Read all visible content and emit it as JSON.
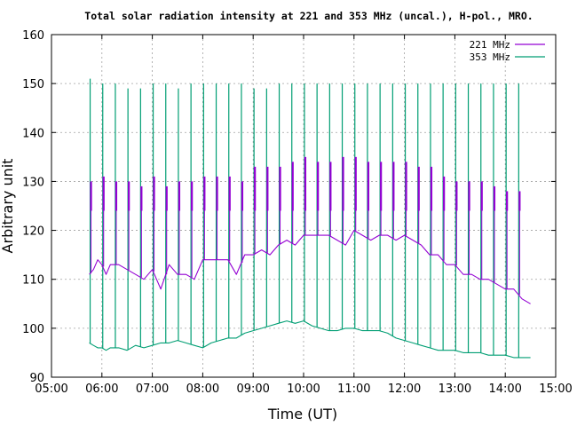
{
  "chart_data": {
    "type": "line",
    "title": "Total solar radiation intensity at 221 and 353 MHz (uncal.), H-pol., MRO.",
    "xlabel": "Time (UT)",
    "ylabel": "Arbitrary unit",
    "xlim": [
      "05:00",
      "15:00"
    ],
    "ylim": [
      90,
      160
    ],
    "x_ticks": [
      "05:00",
      "06:00",
      "07:00",
      "08:00",
      "09:00",
      "10:00",
      "11:00",
      "12:00",
      "13:00",
      "14:00",
      "15:00"
    ],
    "y_ticks": [
      "90",
      "100",
      "110",
      "120",
      "130",
      "140",
      "150",
      "160"
    ],
    "grid": true,
    "legend_position": "top-right",
    "series": [
      {
        "name": "221 MHz",
        "color": "#9400d3",
        "x": [
          "05:45",
          "05:50",
          "05:55",
          "06:00",
          "06:05",
          "06:10",
          "06:20",
          "06:30",
          "06:40",
          "06:50",
          "07:00",
          "07:10",
          "07:20",
          "07:30",
          "07:40",
          "07:50",
          "08:00",
          "08:10",
          "08:20",
          "08:30",
          "08:40",
          "08:50",
          "09:00",
          "09:10",
          "09:20",
          "09:30",
          "09:40",
          "09:50",
          "10:00",
          "10:10",
          "10:20",
          "10:30",
          "10:40",
          "10:50",
          "11:00",
          "11:10",
          "11:20",
          "11:30",
          "11:40",
          "11:50",
          "12:00",
          "12:10",
          "12:20",
          "12:30",
          "12:40",
          "12:50",
          "13:00",
          "13:10",
          "13:20",
          "13:30",
          "13:40",
          "13:50",
          "14:00",
          "14:10",
          "14:20",
          "14:30"
        ],
        "values": [
          111,
          112,
          114,
          113,
          111,
          113,
          113,
          112,
          111,
          110,
          112,
          108,
          113,
          111,
          111,
          110,
          114,
          114,
          114,
          114,
          111,
          115,
          115,
          116,
          115,
          117,
          118,
          117,
          119,
          119,
          119,
          119,
          118,
          117,
          120,
          119,
          118,
          119,
          119,
          118,
          119,
          118,
          117,
          115,
          115,
          113,
          113,
          111,
          111,
          110,
          110,
          109,
          108,
          108,
          106,
          105
        ]
      },
      {
        "name": "353 MHz",
        "color": "#009e73",
        "x": [
          "05:45",
          "05:50",
          "05:55",
          "06:00",
          "06:05",
          "06:10",
          "06:20",
          "06:30",
          "06:40",
          "06:50",
          "07:00",
          "07:10",
          "07:20",
          "07:30",
          "07:40",
          "07:50",
          "08:00",
          "08:10",
          "08:20",
          "08:30",
          "08:40",
          "08:50",
          "09:00",
          "09:10",
          "09:20",
          "09:30",
          "09:40",
          "09:50",
          "10:00",
          "10:10",
          "10:20",
          "10:30",
          "10:40",
          "10:50",
          "11:00",
          "11:10",
          "11:20",
          "11:30",
          "11:40",
          "11:50",
          "12:00",
          "12:10",
          "12:20",
          "12:30",
          "12:40",
          "12:50",
          "13:00",
          "13:10",
          "13:20",
          "13:30",
          "13:40",
          "13:50",
          "14:00",
          "14:10",
          "14:20",
          "14:30"
        ],
        "values": [
          97,
          96.5,
          96,
          96,
          95.5,
          96,
          96,
          95.5,
          96.5,
          96,
          96.5,
          97,
          97,
          97.5,
          97,
          96.5,
          96,
          97,
          97.5,
          98,
          98,
          99,
          99.5,
          100,
          100.5,
          101,
          101.5,
          101,
          101.5,
          100.5,
          100,
          99.5,
          99.5,
          100,
          100,
          99.5,
          99.5,
          99.5,
          99,
          98,
          97.5,
          97,
          96.5,
          96,
          95.5,
          95.5,
          95.5,
          95,
          95,
          95,
          94.5,
          94.5,
          94.5,
          94,
          94,
          94
        ]
      }
    ],
    "calibration_spikes": {
      "221 MHz": {
        "x": [
          "05:46",
          "06:01",
          "06:16",
          "06:31",
          "06:46",
          "07:01",
          "07:16",
          "07:31",
          "07:46",
          "08:01",
          "08:16",
          "08:31",
          "08:46",
          "09:01",
          "09:16",
          "09:31",
          "09:46",
          "10:01",
          "10:16",
          "10:31",
          "10:46",
          "11:01",
          "11:16",
          "11:31",
          "11:46",
          "12:01",
          "12:16",
          "12:31",
          "12:46",
          "13:01",
          "13:16",
          "13:31",
          "13:46",
          "14:01",
          "14:16"
        ],
        "low": [
          124,
          124,
          124,
          124,
          124,
          124,
          124,
          124,
          124,
          124,
          124,
          124,
          124,
          124,
          124,
          124,
          124,
          124,
          124,
          124,
          124,
          124,
          124,
          124,
          124,
          124,
          124,
          124,
          124,
          124,
          124,
          124,
          124,
          124,
          124
        ],
        "high": [
          130,
          131,
          130,
          130,
          129,
          131,
          129,
          130,
          130,
          131,
          131,
          131,
          130,
          133,
          133,
          133,
          134,
          135,
          134,
          134,
          135,
          135,
          134,
          134,
          134,
          134,
          133,
          133,
          131,
          130,
          130,
          130,
          129,
          128,
          128
        ]
      },
      "353 MHz": {
        "x": [
          "05:46",
          "06:01",
          "06:16",
          "06:31",
          "06:46",
          "07:01",
          "07:16",
          "07:31",
          "07:46",
          "08:01",
          "08:16",
          "08:31",
          "08:46",
          "09:01",
          "09:16",
          "09:31",
          "09:46",
          "10:01",
          "10:16",
          "10:31",
          "10:46",
          "11:01",
          "11:16",
          "11:31",
          "11:46",
          "12:01",
          "12:16",
          "12:31",
          "12:46",
          "13:01",
          "13:16",
          "13:31",
          "13:46",
          "14:01",
          "14:16"
        ],
        "high": [
          151,
          150,
          150,
          149,
          149,
          150,
          150,
          149,
          150,
          150,
          150,
          150,
          150,
          149,
          149,
          150,
          150,
          150,
          150,
          150,
          150,
          150,
          150,
          150,
          150,
          150,
          150,
          150,
          150,
          150,
          150,
          150,
          150,
          150,
          150
        ]
      }
    }
  }
}
